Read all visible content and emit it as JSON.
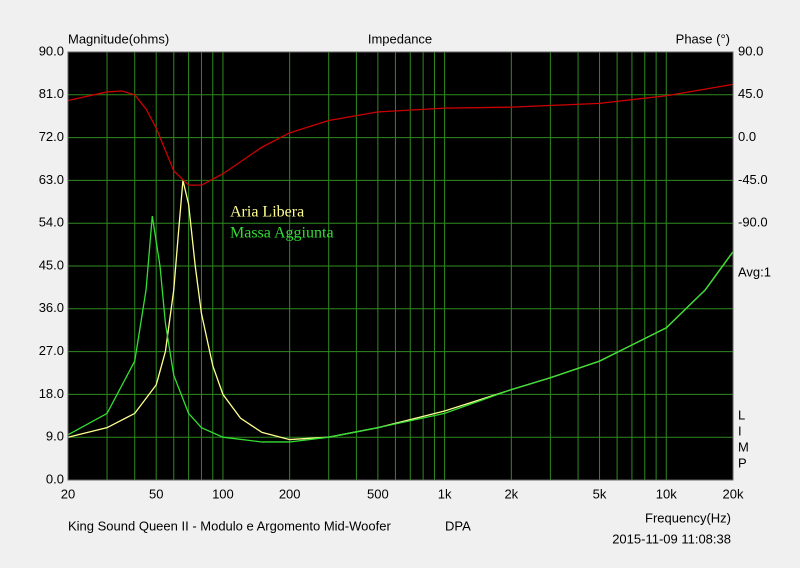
{
  "chart_data": {
    "type": "line",
    "title": "Impedance",
    "y_label": "Magnitude(ohms)",
    "y2_label": "Phase (°)",
    "x_label": "Frequency(Hz)",
    "footer_left": "King Sound Queen II - Modulo e Argomento Mid-Woofer",
    "footer_mid": "DPA",
    "timestamp": "2015-11-09 11:08:38",
    "avg_label": "Avg:1",
    "side_letters": [
      "L",
      "I",
      "M",
      "P"
    ],
    "xscale": "log",
    "grid": true,
    "xlim": [
      20,
      20000
    ],
    "xticks": [
      20,
      50,
      100,
      200,
      500,
      {
        "value": 1000,
        "label": "1k"
      },
      {
        "value": 2000,
        "label": "2k"
      },
      {
        "value": 5000,
        "label": "5k"
      },
      {
        "value": 10000,
        "label": "10k"
      },
      {
        "value": 20000,
        "label": "20k"
      }
    ],
    "x_minor_grid": [
      30,
      40,
      60,
      70,
      80,
      90,
      300,
      400,
      600,
      700,
      800,
      900,
      3000,
      4000,
      6000,
      7000,
      8000,
      9000
    ],
    "ylim": [
      0,
      90
    ],
    "yticks": [
      {
        "value": 0,
        "label": "0.0"
      },
      {
        "value": 9,
        "label": "9.0"
      },
      {
        "value": 18,
        "label": "18.0"
      },
      {
        "value": 27,
        "label": "27.0"
      },
      {
        "value": 36,
        "label": "36.0"
      },
      {
        "value": 45,
        "label": "45.0"
      },
      {
        "value": 54,
        "label": "54.0"
      },
      {
        "value": 63,
        "label": "63.0"
      },
      {
        "value": 72,
        "label": "72.0"
      },
      {
        "value": 81,
        "label": "81.0"
      },
      {
        "value": 90,
        "label": "90.0"
      }
    ],
    "y2lim": [
      -360,
      90
    ],
    "y2ticks": [
      {
        "value": 90,
        "label": "90.0"
      },
      {
        "value": 45,
        "label": "45.0"
      },
      {
        "value": 0,
        "label": "0.0"
      },
      {
        "value": -45,
        "label": "-45.0"
      },
      {
        "value": -90,
        "label": "-90.0"
      }
    ],
    "series": [
      {
        "name": "Aria Libera",
        "color": "#ffff90",
        "x": [
          20,
          30,
          40,
          50,
          55,
          60,
          63,
          66,
          70,
          75,
          80,
          90,
          100,
          120,
          150,
          200,
          300,
          500,
          1000,
          2000,
          3000,
          5000,
          10000,
          15000,
          20000
        ],
        "values": [
          9,
          11,
          14,
          20,
          27,
          40,
          52,
          63,
          58,
          45,
          35,
          24,
          18,
          13,
          10,
          8.5,
          9,
          11,
          14.5,
          19,
          21.5,
          25,
          32,
          40,
          48
        ]
      },
      {
        "name": "Massa Aggiunta",
        "color": "#33dd33",
        "x": [
          20,
          30,
          40,
          45,
          48,
          52,
          55,
          60,
          70,
          80,
          100,
          150,
          200,
          300,
          500,
          1000,
          2000,
          3000,
          5000,
          10000,
          15000,
          20000
        ],
        "values": [
          9.5,
          14,
          25,
          40,
          55.5,
          45,
          33,
          22,
          14,
          11,
          9,
          8,
          8,
          9,
          11,
          14,
          19,
          21.5,
          25,
          32,
          40,
          48
        ]
      },
      {
        "color": "#cc0000",
        "axis": "y2",
        "x": [
          20,
          30,
          35,
          40,
          45,
          50,
          60,
          70,
          80,
          100,
          150,
          200,
          300,
          500,
          1000,
          2000,
          5000,
          10000,
          20000
        ],
        "values": [
          39,
          48,
          49,
          45,
          30,
          10,
          -35,
          -50,
          -50,
          -38,
          -10,
          5,
          18,
          27,
          31,
          32,
          36,
          44,
          56
        ]
      }
    ]
  }
}
